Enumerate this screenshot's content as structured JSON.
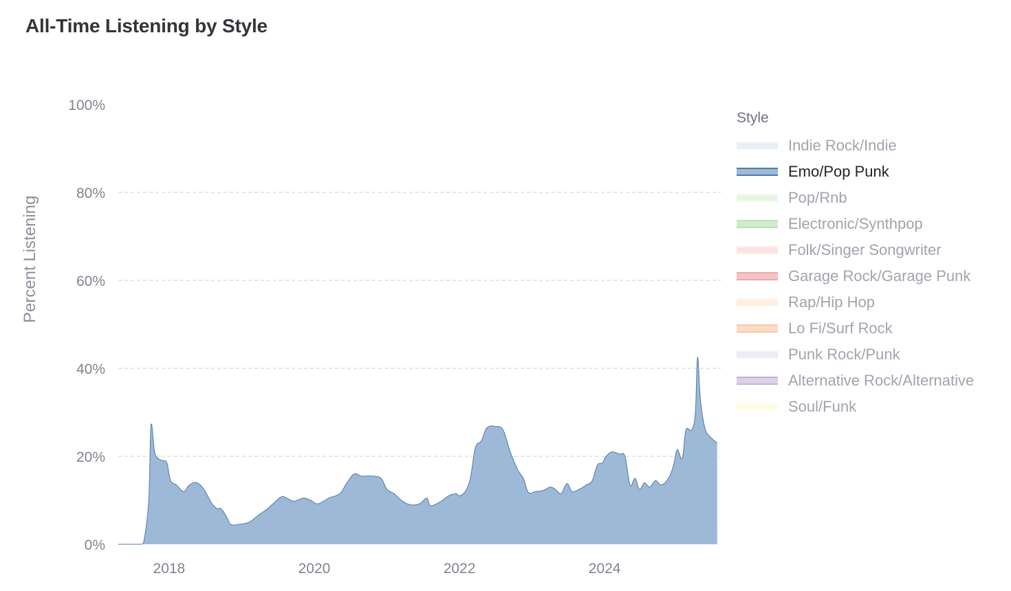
{
  "title": "All-Time Listening by Style",
  "legend": {
    "title": "Style",
    "items": [
      {
        "label": "Indie Rock/Indie",
        "color": "#e6eef8",
        "border": "#f3f7fc",
        "active": false
      },
      {
        "label": "Emo/Pop Punk",
        "color": "#9db9d7",
        "border": "#4e79a7",
        "active": true
      },
      {
        "label": "Pop/Rnb",
        "color": "#e9f5e4",
        "border": "#f4faf1",
        "active": false
      },
      {
        "label": "Electronic/Synthpop",
        "color": "#d3eace",
        "border": "#bfe1b8",
        "active": false
      },
      {
        "label": "Folk/Singer Songwriter",
        "color": "#fbe3e3",
        "border": "#fdf0f0",
        "active": false
      },
      {
        "label": "Garage Rock/Garage Punk",
        "color": "#f2c6c6",
        "border": "#e9a9a9",
        "active": false
      },
      {
        "label": "Rap/Hip Hop",
        "color": "#fdf0e0",
        "border": "#fef7ee",
        "active": false
      },
      {
        "label": "Lo Fi/Surf Rock",
        "color": "#fbdcc6",
        "border": "#f8c9a8",
        "active": false
      },
      {
        "label": "Punk Rock/Punk",
        "color": "#efeaf3",
        "border": "#f6f3f9",
        "active": false
      },
      {
        "label": "Alternative Rock/Alternative",
        "color": "#dcd2e8",
        "border": "#c4b4d9",
        "active": false
      },
      {
        "label": "Soul/Funk",
        "color": "#fefbe6",
        "border": "#fffdf2",
        "active": false
      }
    ]
  },
  "chart_data": {
    "type": "area",
    "title": "All-Time Listening by Style",
    "xlabel": "",
    "ylabel": "Percent Listening",
    "xlim": [
      2017.3,
      2025.6
    ],
    "ylim": [
      0,
      100
    ],
    "y_ticks": [
      0,
      20,
      40,
      60,
      80,
      100
    ],
    "y_tick_labels": [
      "0%",
      "20%",
      "40%",
      "60%",
      "80%",
      "100%"
    ],
    "x_ticks": [
      2018,
      2020,
      2022,
      2024
    ],
    "x_tick_labels": [
      "2018",
      "2020",
      "2022",
      "2024"
    ],
    "grid": "horizontal dashed",
    "legend_position": "right",
    "series": [
      {
        "name": "Emo/Pop Punk",
        "color": "#9db9d7",
        "line_color": "#4e79a7",
        "points": [
          [
            2017.3,
            0
          ],
          [
            2017.6,
            0
          ],
          [
            2017.65,
            0.5
          ],
          [
            2017.72,
            10
          ],
          [
            2017.75,
            27
          ],
          [
            2017.8,
            21
          ],
          [
            2017.85,
            19.5
          ],
          [
            2017.92,
            19
          ],
          [
            2017.97,
            18.5
          ],
          [
            2018.02,
            14.5
          ],
          [
            2018.1,
            13.5
          ],
          [
            2018.2,
            12
          ],
          [
            2018.28,
            13.5
          ],
          [
            2018.38,
            14
          ],
          [
            2018.48,
            12.5
          ],
          [
            2018.58,
            9.5
          ],
          [
            2018.65,
            8.2
          ],
          [
            2018.72,
            8
          ],
          [
            2018.8,
            6
          ],
          [
            2018.85,
            4.5
          ],
          [
            2018.95,
            4.5
          ],
          [
            2019.1,
            5
          ],
          [
            2019.22,
            6.5
          ],
          [
            2019.35,
            8
          ],
          [
            2019.45,
            9.5
          ],
          [
            2019.55,
            10.8
          ],
          [
            2019.62,
            10.5
          ],
          [
            2019.72,
            9.8
          ],
          [
            2019.85,
            10.5
          ],
          [
            2019.95,
            10
          ],
          [
            2020.05,
            9.2
          ],
          [
            2020.2,
            10.5
          ],
          [
            2020.35,
            11.5
          ],
          [
            2020.45,
            14
          ],
          [
            2020.55,
            16
          ],
          [
            2020.65,
            15.5
          ],
          [
            2020.8,
            15.5
          ],
          [
            2020.92,
            15
          ],
          [
            2021.0,
            12.5
          ],
          [
            2021.1,
            11.5
          ],
          [
            2021.2,
            10
          ],
          [
            2021.32,
            9
          ],
          [
            2021.45,
            9.2
          ],
          [
            2021.55,
            10.5
          ],
          [
            2021.6,
            8.8
          ],
          [
            2021.72,
            9.5
          ],
          [
            2021.85,
            11
          ],
          [
            2021.95,
            11.5
          ],
          [
            2022.0,
            11
          ],
          [
            2022.08,
            12
          ],
          [
            2022.15,
            15
          ],
          [
            2022.22,
            22
          ],
          [
            2022.3,
            23.5
          ],
          [
            2022.38,
            26.5
          ],
          [
            2022.5,
            26.8
          ],
          [
            2022.6,
            26
          ],
          [
            2022.7,
            21
          ],
          [
            2022.8,
            17
          ],
          [
            2022.88,
            15
          ],
          [
            2022.95,
            11.8
          ],
          [
            2023.05,
            12
          ],
          [
            2023.15,
            12.2
          ],
          [
            2023.25,
            13
          ],
          [
            2023.32,
            12.5
          ],
          [
            2023.4,
            11.5
          ],
          [
            2023.48,
            13.8
          ],
          [
            2023.55,
            12
          ],
          [
            2023.65,
            12.5
          ],
          [
            2023.75,
            13.5
          ],
          [
            2023.83,
            14.5
          ],
          [
            2023.9,
            18
          ],
          [
            2023.97,
            18.5
          ],
          [
            2024.02,
            20
          ],
          [
            2024.1,
            21
          ],
          [
            2024.2,
            20.5
          ],
          [
            2024.28,
            20
          ],
          [
            2024.35,
            13.5
          ],
          [
            2024.42,
            15
          ],
          [
            2024.48,
            12.5
          ],
          [
            2024.55,
            14
          ],
          [
            2024.62,
            13
          ],
          [
            2024.7,
            14.5
          ],
          [
            2024.78,
            13.5
          ],
          [
            2024.88,
            15
          ],
          [
            2024.95,
            18
          ],
          [
            2025.0,
            21.5
          ],
          [
            2025.07,
            19.5
          ],
          [
            2025.12,
            26
          ],
          [
            2025.2,
            26
          ],
          [
            2025.25,
            30
          ],
          [
            2025.28,
            42.5
          ],
          [
            2025.32,
            33
          ],
          [
            2025.38,
            26.5
          ],
          [
            2025.45,
            24.5
          ],
          [
            2025.55,
            23
          ]
        ]
      }
    ]
  }
}
